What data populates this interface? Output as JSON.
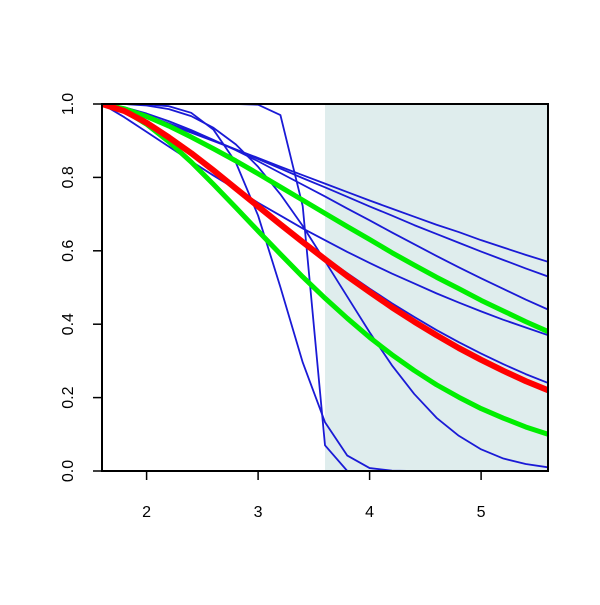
{
  "chart_data": {
    "type": "line",
    "x": [
      1.6,
      1.8,
      2.0,
      2.2,
      2.4,
      2.6,
      2.8,
      3.0,
      3.2,
      3.4,
      3.6,
      3.8,
      4.0,
      4.2,
      4.4,
      4.6,
      4.8,
      5.0,
      5.2,
      5.4,
      5.6
    ],
    "xlim": [
      1.6,
      5.6
    ],
    "ylim": [
      0,
      1
    ],
    "xticks": [
      2,
      3,
      4,
      5
    ],
    "yticks": [
      {
        "value": 0,
        "label": "0.0"
      },
      0.2,
      0.4,
      0.6,
      0.8,
      {
        "value": 1,
        "label": "1.0"
      }
    ],
    "shade_from": 3.6,
    "shade_color": "#dfeded",
    "series": [
      {
        "color": "#1a1ad6",
        "line_width": 1.8,
        "values": [
          1,
          0.985,
          0.965,
          0.944,
          0.922,
          0.899,
          0.876,
          0.853,
          0.829,
          0.806,
          0.783,
          0.76,
          0.737,
          0.715,
          0.693,
          0.671,
          0.651,
          0.629,
          0.609,
          0.589,
          0.57
        ]
      },
      {
        "color": "#1a1ad6",
        "line_width": 1.8,
        "values": [
          1,
          0.987,
          0.969,
          0.947,
          0.925,
          0.901,
          0.876,
          0.85,
          0.824,
          0.798,
          0.773,
          0.747,
          0.721,
          0.696,
          0.67,
          0.646,
          0.622,
          0.598,
          0.575,
          0.552,
          0.53
        ]
      },
      {
        "color": "#1a1ad6",
        "line_width": 1.8,
        "values": [
          1,
          0.991,
          0.974,
          0.953,
          0.929,
          0.902,
          0.874,
          0.844,
          0.812,
          0.78,
          0.748,
          0.715,
          0.683,
          0.65,
          0.618,
          0.586,
          0.555,
          0.525,
          0.496,
          0.467,
          0.44
        ]
      },
      {
        "color": "#1a1ad6",
        "line_width": 1.8,
        "values": [
          1,
          0.964,
          0.924,
          0.884,
          0.844,
          0.805,
          0.768,
          0.731,
          0.696,
          0.661,
          0.629,
          0.597,
          0.567,
          0.538,
          0.511,
          0.484,
          0.459,
          0.435,
          0.412,
          0.391,
          0.37
        ]
      },
      {
        "color": "#1a1ad6",
        "line_width": 1.8,
        "values": [
          1,
          0.979,
          0.945,
          0.904,
          0.861,
          0.815,
          0.767,
          0.72,
          0.673,
          0.626,
          0.582,
          0.539,
          0.497,
          0.457,
          0.42,
          0.384,
          0.351,
          0.32,
          0.291,
          0.264,
          0.24
        ]
      },
      {
        "color": "#1a1ad6",
        "line_width": 1.8,
        "values": [
          1,
          1,
          0.996,
          0.986,
          0.967,
          0.935,
          0.89,
          0.829,
          0.754,
          0.668,
          0.572,
          0.475,
          0.378,
          0.288,
          0.21,
          0.145,
          0.096,
          0.059,
          0.034,
          0.019,
          0.01
        ]
      },
      {
        "color": "#1a1ad6",
        "line_width": 1.8,
        "values": [
          1,
          1,
          0.999,
          0.994,
          0.976,
          0.93,
          0.841,
          0.696,
          0.501,
          0.296,
          0.133,
          0.042,
          0.008,
          0.001,
          0,
          0,
          0,
          0,
          0,
          0,
          0
        ]
      },
      {
        "color": "#1a1ad6",
        "line_width": 1.8,
        "values": [
          1,
          1,
          1,
          1,
          1,
          1,
          1,
          0.998,
          0.97,
          0.722,
          0.07,
          0,
          0,
          0,
          0,
          0,
          0,
          0,
          0,
          0,
          0
        ]
      },
      {
        "color": "#00ee00",
        "line_width": 5,
        "values": [
          1,
          0.987,
          0.966,
          0.94,
          0.91,
          0.878,
          0.845,
          0.81,
          0.774,
          0.738,
          0.702,
          0.666,
          0.631,
          0.595,
          0.561,
          0.528,
          0.497,
          0.465,
          0.436,
          0.407,
          0.38
        ]
      },
      {
        "color": "#00ee00",
        "line_width": 5,
        "values": [
          1,
          0.982,
          0.945,
          0.897,
          0.842,
          0.781,
          0.718,
          0.654,
          0.591,
          0.529,
          0.471,
          0.416,
          0.364,
          0.317,
          0.274,
          0.235,
          0.201,
          0.17,
          0.144,
          0.12,
          0.1
        ]
      },
      {
        "color": "#ff0000",
        "line_width": 6,
        "values": [
          1,
          0.981,
          0.949,
          0.909,
          0.866,
          0.819,
          0.77,
          0.721,
          0.672,
          0.624,
          0.577,
          0.531,
          0.488,
          0.446,
          0.407,
          0.37,
          0.335,
          0.303,
          0.273,
          0.245,
          0.22
        ]
      }
    ]
  }
}
